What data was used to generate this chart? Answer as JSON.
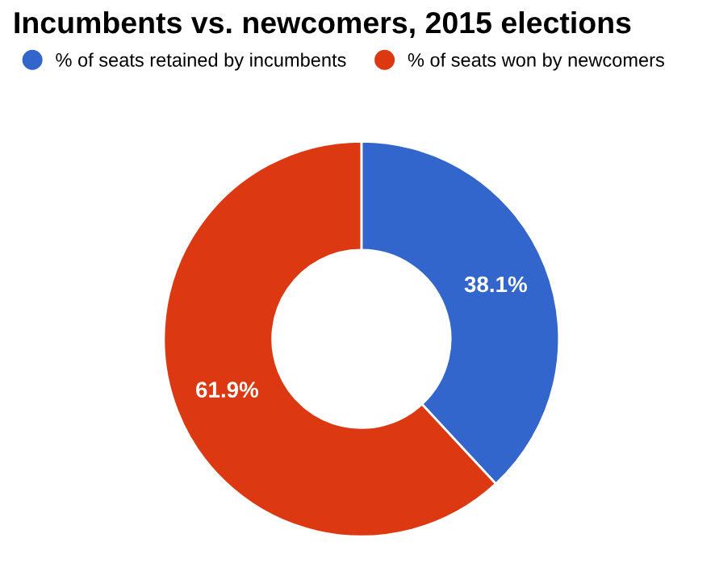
{
  "chart_data": {
    "type": "donut",
    "title": "Incumbents vs. newcomers, 2015 elections",
    "categories": [
      "% of seats retained by incumbents",
      "% of seats won by newcomers"
    ],
    "values": [
      38.1,
      61.9
    ],
    "colors": [
      "#3366cc",
      "#dc3912"
    ],
    "value_labels": [
      "38.1%",
      "61.9%"
    ],
    "legend": "top"
  }
}
